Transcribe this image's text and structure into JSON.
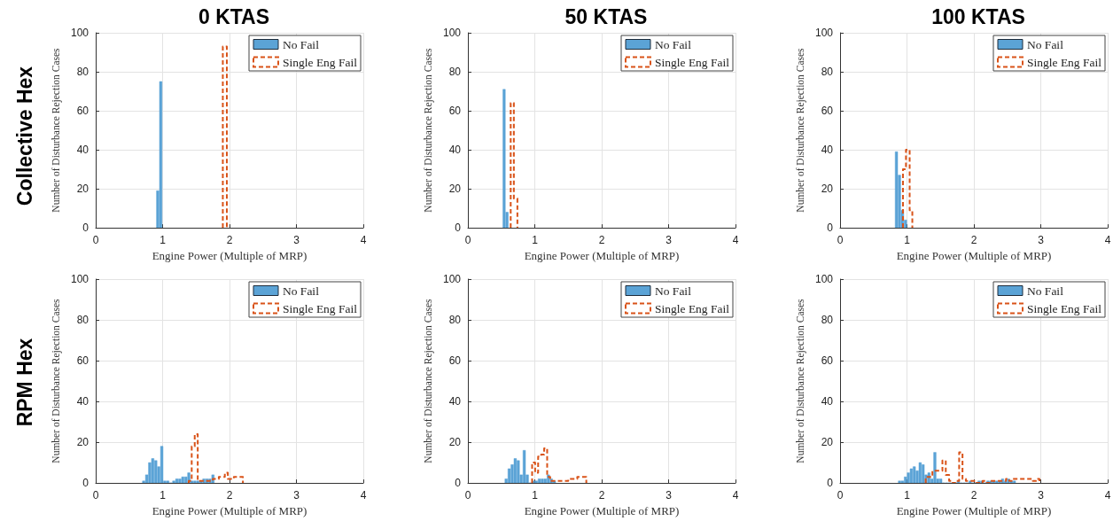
{
  "chart_data": [
    {
      "type": "histogram",
      "title": "0 KTAS",
      "annotations": [
        "Collective Hex"
      ],
      "xlabel": "Engine Power (Multiple of MRP)",
      "ylabel": "Number of Disturbance Rejection Cases",
      "xlim": [
        0,
        4
      ],
      "xticks": [
        0,
        1,
        2,
        3,
        4
      ],
      "ylim": [
        0,
        100
      ],
      "yticks": [
        0,
        20,
        40,
        60,
        80,
        100
      ],
      "grid": true,
      "legend": "top right",
      "bins": [
        0.905,
        0.95,
        0.995
      ],
      "series": [
        {
          "name": "No Fail",
          "color": "#5ba3d6",
          "values": [
            19,
            75
          ]
        },
        {
          "name": "Single Eng Fail",
          "color": "#d95319",
          "line_style": "dashed",
          "bins": [
            1.9,
            1.96
          ],
          "values": [
            93
          ]
        }
      ]
    },
    {
      "type": "histogram",
      "title": "50 KTAS",
      "xlabel": "Engine Power (Multiple of MRP)",
      "ylabel": "Number of Disturbance Rejection Cases",
      "xlim": [
        0,
        4
      ],
      "xticks": [
        0,
        1,
        2,
        3,
        4
      ],
      "ylim": [
        0,
        100
      ],
      "yticks": [
        0,
        20,
        40,
        60,
        80,
        100
      ],
      "grid": true,
      "legend": "top right",
      "bins": [
        0.52,
        0.563,
        0.607
      ],
      "series": [
        {
          "name": "No Fail",
          "color": "#5ba3d6",
          "values": [
            71,
            8
          ]
        },
        {
          "name": "Single Eng Fail",
          "color": "#d95319",
          "line_style": "dashed",
          "bins": [
            0.64,
            0.687,
            0.74
          ],
          "values": [
            64,
            15
          ]
        }
      ]
    },
    {
      "type": "histogram",
      "title": "100 KTAS",
      "xlabel": "Engine Power (Multiple of MRP)",
      "ylabel": "Number of Disturbance Rejection Cases",
      "xlim": [
        0,
        4
      ],
      "xticks": [
        0,
        1,
        2,
        3,
        4
      ],
      "ylim": [
        0,
        100
      ],
      "yticks": [
        0,
        20,
        40,
        60,
        80,
        100
      ],
      "grid": true,
      "legend": "top right",
      "bins": [
        0.82,
        0.865,
        0.91,
        0.955,
        1.0
      ],
      "series": [
        {
          "name": "No Fail",
          "color": "#5ba3d6",
          "values": [
            39,
            27,
            9,
            4
          ]
        },
        {
          "name": "Single Eng Fail",
          "color": "#d95319",
          "line_style": "dashed",
          "bins": [
            0.94,
            0.985,
            1.04,
            1.08
          ],
          "values": [
            30,
            40,
            9
          ]
        }
      ]
    },
    {
      "type": "histogram",
      "annotations": [
        "RPM Hex"
      ],
      "xlabel": "Engine Power (Multiple of MRP)",
      "ylabel": "Number of Disturbance Rejection Cases",
      "xlim": [
        0,
        4
      ],
      "xticks": [
        0,
        1,
        2,
        3,
        4
      ],
      "ylim": [
        0,
        100
      ],
      "yticks": [
        0,
        20,
        40,
        60,
        80,
        100
      ],
      "grid": true,
      "legend": "top right",
      "bins": [
        0.695,
        0.74,
        0.785,
        0.83,
        0.875,
        0.92,
        0.965,
        1.01,
        1.055,
        1.1,
        1.145,
        1.19,
        1.235,
        1.28,
        1.325,
        1.37,
        1.415,
        1.46,
        1.505,
        1.55,
        1.595,
        1.64,
        1.685,
        1.73,
        1.775
      ],
      "series": [
        {
          "name": "No Fail",
          "color": "#5ba3d6",
          "values": [
            1,
            4,
            10,
            12,
            11,
            8,
            18,
            1,
            1,
            0,
            1,
            2,
            2,
            3,
            3,
            5,
            1,
            1,
            1,
            1,
            2,
            2,
            2,
            4
          ]
        },
        {
          "name": "Single Eng Fail",
          "color": "#d95319",
          "line_style": "dashed",
          "bins": [
            1.39,
            1.435,
            1.48,
            1.525,
            1.57,
            1.615,
            1.66,
            1.705,
            1.75,
            1.795,
            1.84,
            1.885,
            1.93,
            1.975,
            2.02,
            2.065,
            2.11,
            2.155,
            2.2
          ],
          "values": [
            1,
            18,
            24,
            1,
            1,
            1,
            1,
            1,
            2,
            2,
            3,
            3,
            5,
            2,
            2,
            3,
            3,
            3
          ]
        }
      ]
    },
    {
      "type": "histogram",
      "xlabel": "Engine Power (Multiple of MRP)",
      "ylabel": "Number of Disturbance Rejection Cases",
      "xlim": [
        0,
        4
      ],
      "xticks": [
        0,
        1,
        2,
        3,
        4
      ],
      "ylim": [
        0,
        100
      ],
      "yticks": [
        0,
        20,
        40,
        60,
        80,
        100
      ],
      "grid": true,
      "legend": "top right",
      "bins": [
        0.55,
        0.595,
        0.64,
        0.685,
        0.73,
        0.775,
        0.82,
        0.865,
        0.91,
        0.955,
        1.0,
        1.045,
        1.09,
        1.135,
        1.18,
        1.225,
        1.27,
        1.315
      ],
      "series": [
        {
          "name": "No Fail",
          "color": "#5ba3d6",
          "values": [
            2,
            7,
            9,
            12,
            11,
            4,
            16,
            4,
            0,
            1,
            1,
            2,
            2,
            2,
            4,
            2,
            1
          ]
        },
        {
          "name": "Single Eng Fail",
          "color": "#d95319",
          "line_style": "dashed",
          "bins": [
            0.96,
            1.005,
            1.05,
            1.095,
            1.14,
            1.185,
            1.23,
            1.275,
            1.32,
            1.365,
            1.41,
            1.455,
            1.5,
            1.545,
            1.59,
            1.635,
            1.68,
            1.725,
            1.77
          ],
          "values": [
            10,
            5,
            13,
            14,
            17,
            3,
            1,
            1,
            1,
            1,
            1,
            1,
            2,
            2,
            2,
            3,
            3,
            3
          ]
        }
      ]
    },
    {
      "type": "histogram",
      "xlabel": "Engine Power (Multiple of MRP)",
      "ylabel": "Number of Disturbance Rejection Cases",
      "xlim": [
        0,
        4
      ],
      "xticks": [
        0,
        1,
        2,
        3,
        4
      ],
      "ylim": [
        0,
        100
      ],
      "yticks": [
        0,
        20,
        40,
        60,
        80,
        100
      ],
      "grid": true,
      "legend": "top right",
      "bins": [
        0.867,
        0.911,
        0.955,
        0.999,
        1.043,
        1.087,
        1.131,
        1.175,
        1.219,
        1.263,
        1.307,
        1.351,
        1.395,
        1.439,
        1.483,
        1.527,
        1.571,
        1.615,
        1.659,
        1.703,
        1.747,
        1.791,
        1.835,
        1.879,
        1.923,
        1.967,
        2.011,
        2.055,
        2.099,
        2.143,
        2.187,
        2.231,
        2.275,
        2.319,
        2.363,
        2.407,
        2.451,
        2.495,
        2.539,
        2.583,
        2.627
      ],
      "series": [
        {
          "name": "No Fail",
          "color": "#5ba3d6",
          "values": [
            1,
            1,
            3,
            5,
            7,
            8,
            6,
            10,
            9,
            4,
            5,
            2,
            15,
            2,
            2,
            0,
            0,
            0,
            0,
            0,
            1,
            0,
            0,
            0,
            1,
            0,
            0,
            1,
            1,
            0,
            1,
            1,
            1,
            1,
            1,
            2,
            1,
            2,
            1,
            1
          ]
        },
        {
          "name": "Single Eng Fail",
          "color": "#d95319",
          "line_style": "dashed",
          "bins": [
            1.28,
            1.33,
            1.38,
            1.43,
            1.48,
            1.53,
            1.58,
            1.63,
            1.68,
            1.73,
            1.78,
            1.83,
            1.88,
            1.93,
            1.98,
            2.03,
            2.08,
            2.13,
            2.18,
            2.23,
            2.28,
            2.33,
            2.38,
            2.43,
            2.48,
            2.53,
            2.58,
            2.63,
            2.68,
            2.73,
            2.78,
            2.83,
            2.88,
            2.93,
            2.98
          ],
          "values": [
            3,
            3,
            6,
            6,
            6,
            11,
            4,
            1,
            0,
            1,
            15,
            2,
            1,
            1,
            1,
            0,
            0,
            1,
            0,
            1,
            1,
            1,
            1,
            1,
            2,
            1,
            2,
            2,
            2,
            2,
            2,
            2,
            1,
            2
          ]
        }
      ]
    }
  ]
}
